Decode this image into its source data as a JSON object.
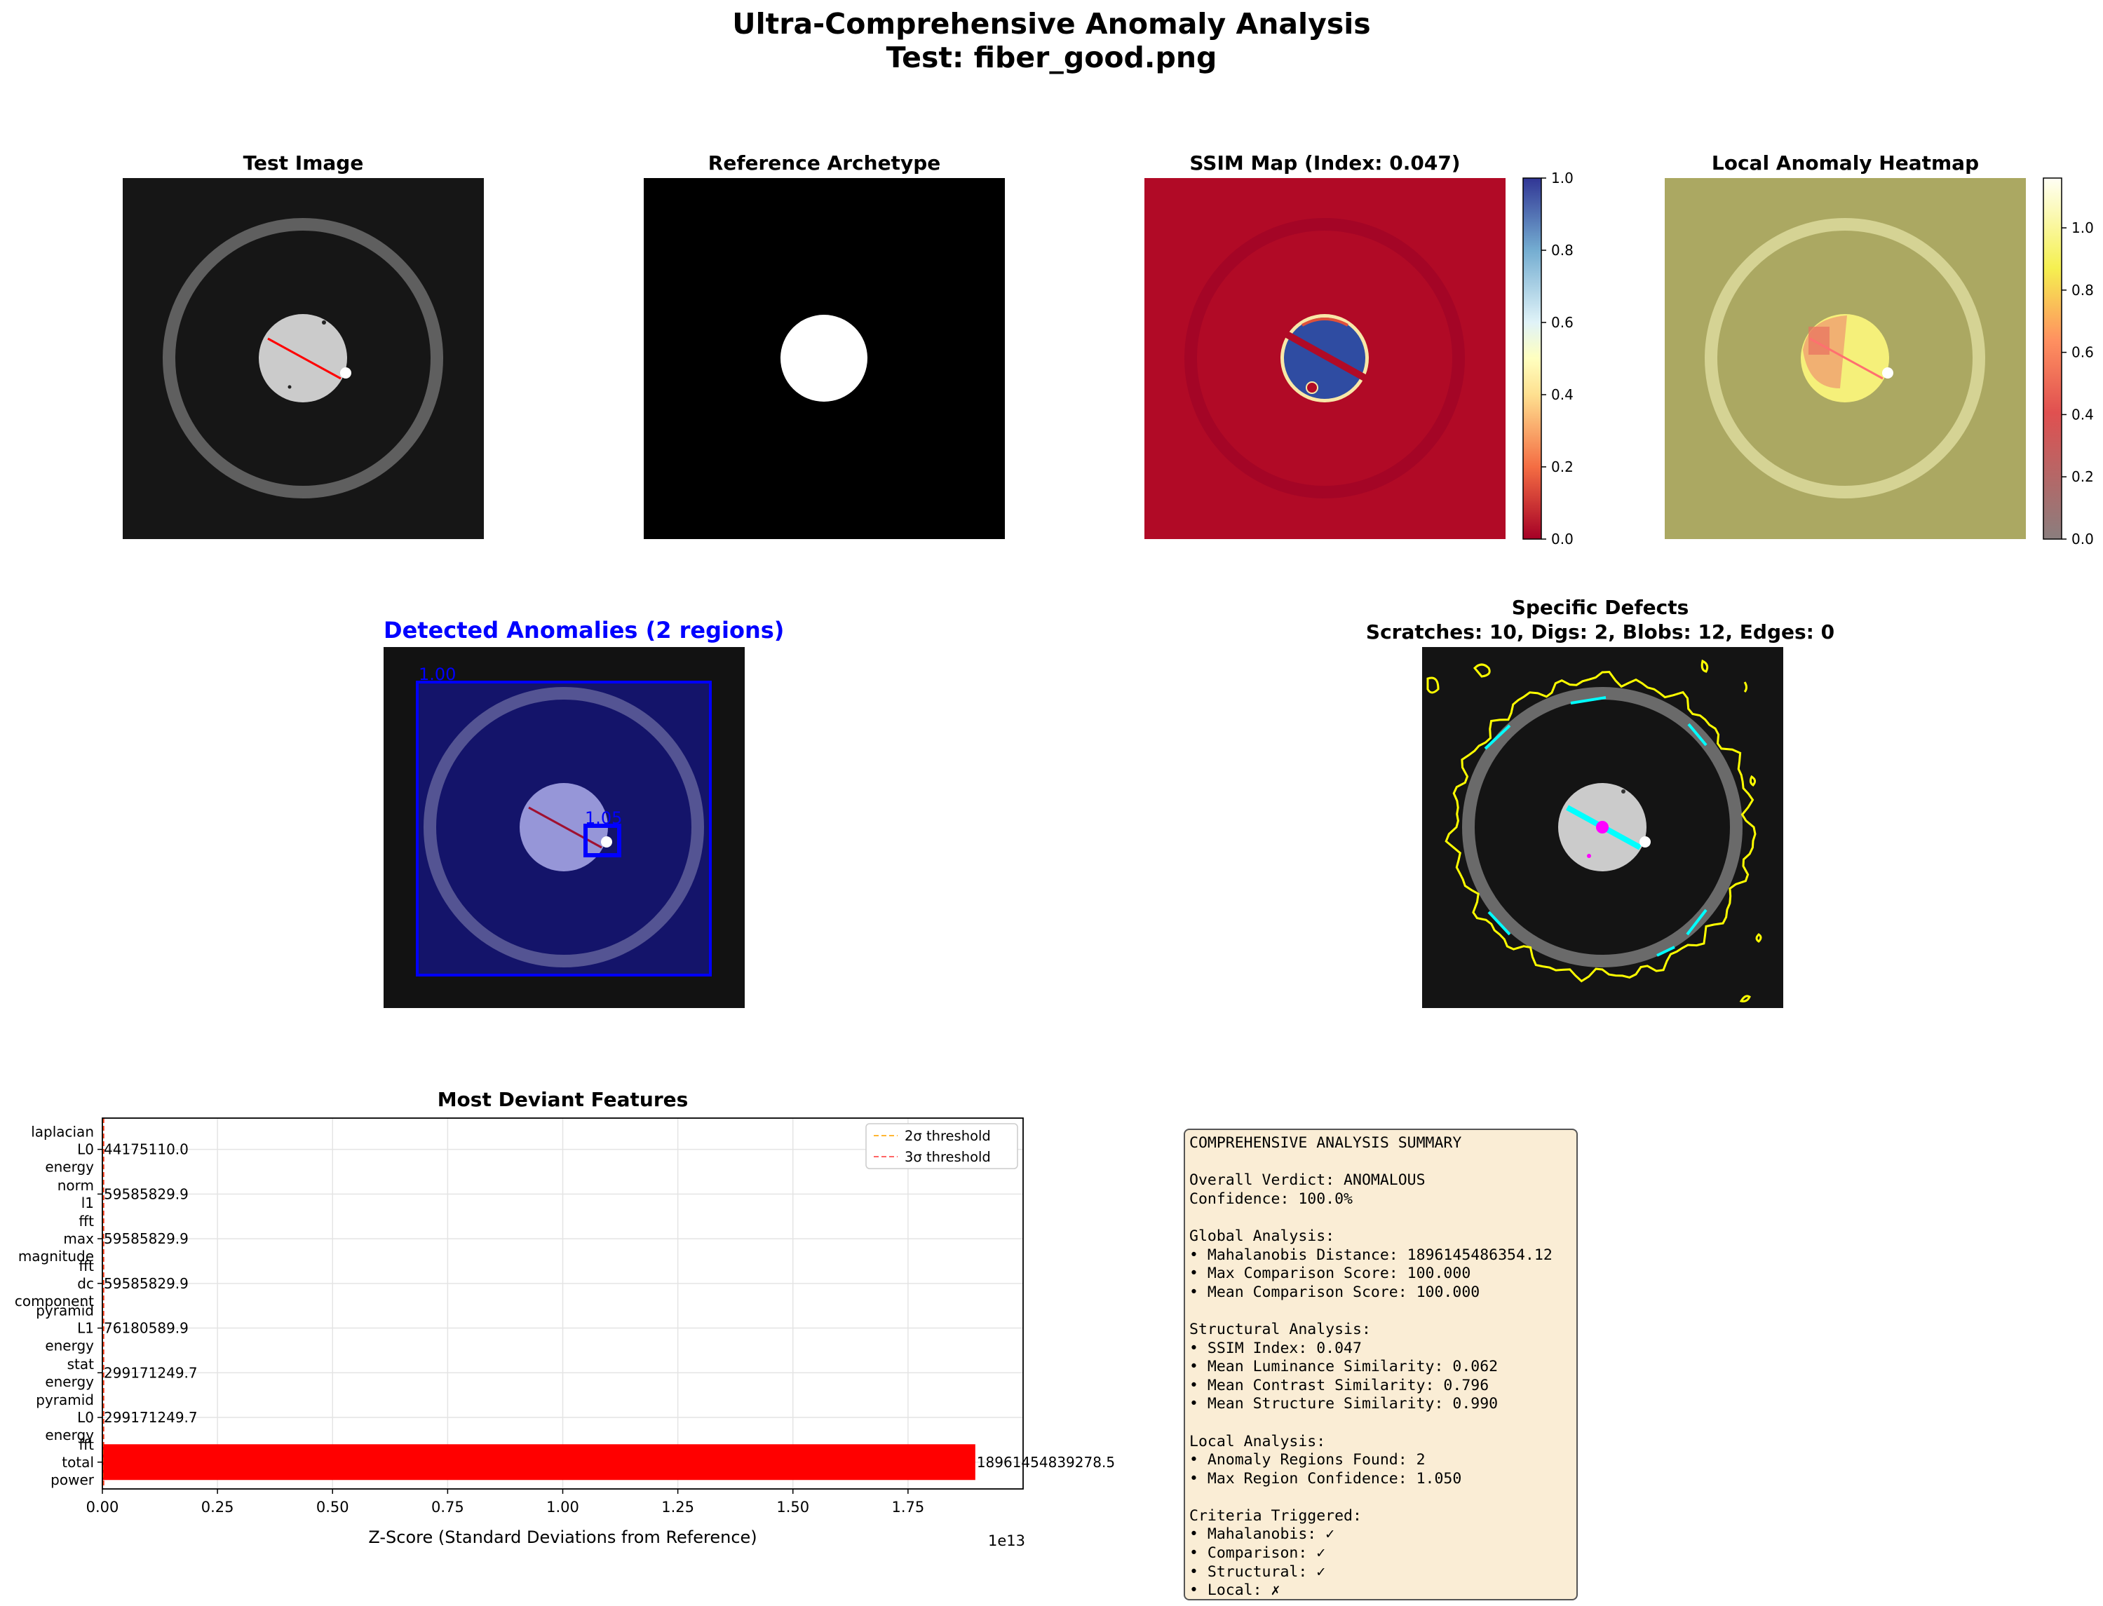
{
  "suptitle": {
    "line1": "Ultra-Comprehensive Anomaly Analysis",
    "line2": "Test: fiber_good.png"
  },
  "panels": {
    "test_image": {
      "title": "Test Image"
    },
    "reference": {
      "title": "Reference Archetype"
    },
    "ssim_map": {
      "title": "SSIM Map (Index: 0.047)",
      "colorbar": {
        "ticks": [
          "0.0",
          "0.2",
          "0.4",
          "0.6",
          "0.8",
          "1.0"
        ],
        "min": 0.0,
        "max": 1.0
      }
    },
    "heatmap": {
      "title": "Local Anomaly Heatmap",
      "colorbar": {
        "ticks": [
          "0.0",
          "0.2",
          "0.4",
          "0.6",
          "0.8",
          "1.0"
        ],
        "min": 0.0,
        "max": 1.16
      }
    },
    "detected": {
      "title": "Detected Anomalies (2 regions)",
      "region_labels": [
        "1.00",
        "1.05"
      ]
    },
    "defects": {
      "title_line1": "Specific Defects",
      "title_line2": "Scratches: 10, Digs: 2, Blobs: 12, Edges: 0"
    }
  },
  "colors": {
    "title_blue": "#0000ff",
    "bar_red": "#ff0000",
    "threshold_2": "#ffa500",
    "threshold_3": "#ff0000",
    "summary_bg": "#f5deb3"
  },
  "chart_data": {
    "type": "bar",
    "orientation": "horizontal",
    "title": "Most Deviant Features",
    "xlabel": "Z-Score (Standard Deviations from Reference)",
    "xlim": [
      0,
      20000000000000.0
    ],
    "x_ticks": [
      "0.00",
      "0.25",
      "0.50",
      "0.75",
      "1.00",
      "1.25",
      "1.50",
      "1.75"
    ],
    "x_tick_values": [
      0,
      2500000000000.0,
      5000000000000.0,
      7500000000000.0,
      10000000000000.0,
      12500000000000.0,
      15000000000000.0,
      17500000000000.0
    ],
    "offset_text": "1e13",
    "grid": true,
    "legend_position": "top-right",
    "legend": [
      "2σ threshold",
      "3σ threshold"
    ],
    "categories": [
      [
        "laplacian",
        "L0",
        "energy"
      ],
      [
        "norm",
        "l1"
      ],
      [
        "fft",
        "max",
        "magnitude"
      ],
      [
        "fft",
        "dc",
        "component"
      ],
      [
        "pyramid",
        "L1",
        "energy"
      ],
      [
        "stat",
        "energy"
      ],
      [
        "pyramid",
        "L0",
        "energy"
      ],
      [
        "fft",
        "total",
        "power"
      ]
    ],
    "values": [
      44175110.0,
      59585829.9,
      59585829.9,
      59585829.9,
      76180589.9,
      299171249.7,
      299171249.7,
      18961454839278.5
    ],
    "value_labels": [
      "44175110.0",
      "59585829.9",
      "59585829.9",
      "59585829.9",
      "76180589.9",
      "299171249.7",
      "299171249.7",
      "18961454839278.5"
    ]
  },
  "summary": {
    "lines": [
      "COMPREHENSIVE ANALYSIS SUMMARY",
      "",
      "Overall Verdict: ANOMALOUS",
      "Confidence: 100.0%",
      "",
      "Global Analysis:",
      "• Mahalanobis Distance: 1896145486354.12",
      "• Max Comparison Score: 100.000",
      "• Mean Comparison Score: 100.000",
      "",
      "Structural Analysis:",
      "• SSIM Index: 0.047",
      "• Mean Luminance Similarity: 0.062",
      "• Mean Contrast Similarity: 0.796",
      "• Mean Structure Similarity: 0.990",
      "",
      "Local Analysis:",
      "• Anomaly Regions Found: 2",
      "• Max Region Confidence: 1.050",
      "",
      "Criteria Triggered:",
      "• Mahalanobis: ✓",
      "• Comparison: ✓",
      "• Structural: ✓",
      "• Local: ✗"
    ]
  }
}
